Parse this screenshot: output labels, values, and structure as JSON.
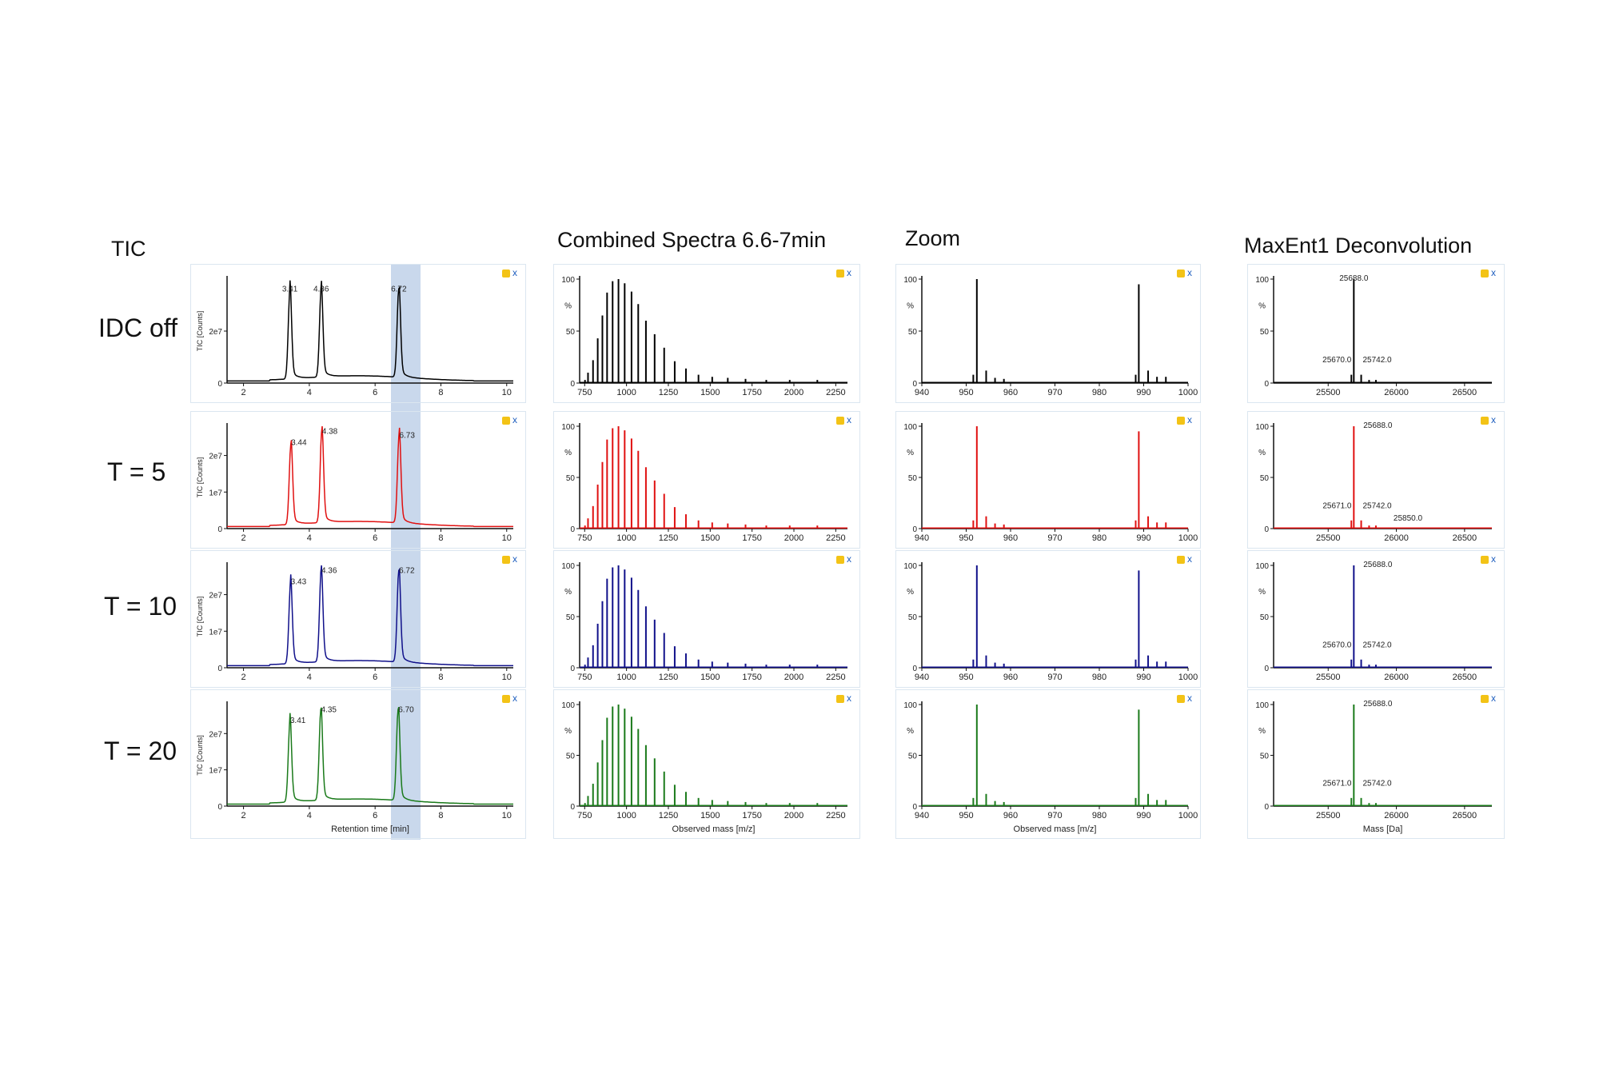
{
  "titles": {
    "tic": "TIC",
    "spectra": "Combined Spectra 6.6-7min",
    "zoom": "Zoom",
    "maxent": "MaxEnt1 Deconvolution"
  },
  "rows": [
    {
      "label": "IDC off",
      "color": "#000000"
    },
    {
      "label": "T = 5",
      "color": "#e01010"
    },
    {
      "label": "T = 10",
      "color": "#10108a"
    },
    {
      "label": "T = 20",
      "color": "#1a7a1a"
    }
  ],
  "toolbar": {
    "close_label": "x"
  },
  "chart_data": [
    {
      "type": "line",
      "panel": "tic",
      "xlabel": "Retention time [min]",
      "ylabel": "TIC [Counts]",
      "xlim": [
        1.5,
        10.2
      ],
      "xticks": [
        2,
        4,
        6,
        8,
        10
      ],
      "highlight_range": [
        6.5,
        7.4
      ],
      "series": [
        {
          "ylim": [
            0,
            40000000
          ],
          "yticks": [
            {
              "v": 0,
              "t": "0"
            },
            {
              "v": 20000000,
              "t": "2e7"
            }
          ],
          "peaks": [
            {
              "x": 3.41,
              "y": 34000000,
              "label": "3.41"
            },
            {
              "x": 4.36,
              "y": 34000000,
              "label": "4.36"
            },
            {
              "x": 6.72,
              "y": 34000000,
              "label": "6.72"
            }
          ]
        },
        {
          "ylim": [
            0,
            28000000
          ],
          "yticks": [
            {
              "v": 0,
              "t": "0"
            },
            {
              "v": 10000000,
              "t": "1e7"
            },
            {
              "v": 20000000,
              "t": "2e7"
            }
          ],
          "peaks": [
            {
              "x": 3.44,
              "y": 22000000,
              "label": "3.44"
            },
            {
              "x": 4.38,
              "y": 25000000,
              "label": "4.38"
            },
            {
              "x": 6.73,
              "y": 24000000,
              "label": "6.73"
            }
          ]
        },
        {
          "ylim": [
            0,
            28000000
          ],
          "yticks": [
            {
              "v": 0,
              "t": "0"
            },
            {
              "v": 10000000,
              "t": "1e7"
            },
            {
              "v": 20000000,
              "t": "2e7"
            }
          ],
          "peaks": [
            {
              "x": 3.43,
              "y": 22000000,
              "label": "3.43"
            },
            {
              "x": 4.36,
              "y": 25000000,
              "label": "4.36"
            },
            {
              "x": 6.72,
              "y": 25000000,
              "label": "6.72"
            }
          ]
        },
        {
          "ylim": [
            0,
            28000000
          ],
          "yticks": [
            {
              "v": 0,
              "t": "0"
            },
            {
              "v": 10000000,
              "t": "1e7"
            },
            {
              "v": 20000000,
              "t": "2e7"
            }
          ],
          "peaks": [
            {
              "x": 3.41,
              "y": 22000000,
              "label": "3.41"
            },
            {
              "x": 4.35,
              "y": 25000000,
              "label": "4.35"
            },
            {
              "x": 6.7,
              "y": 25000000,
              "label": "6.70"
            }
          ]
        }
      ]
    },
    {
      "type": "bar",
      "panel": "spectra",
      "xlabel": "Observed mass [m/z]",
      "ylabel": "%",
      "xlim": [
        720,
        2320
      ],
      "xticks": [
        750,
        1000,
        1250,
        1500,
        1750,
        2000,
        2250
      ],
      "ylim": [
        0,
        100
      ],
      "yticks": [
        0,
        50,
        100
      ],
      "x": [
        752,
        770,
        800,
        828,
        856,
        884,
        917,
        952,
        989,
        1030,
        1070,
        1116,
        1168,
        1225,
        1288,
        1355,
        1430,
        1512,
        1605,
        1711,
        1835,
        1975,
        2140
      ],
      "values": [
        3,
        10,
        22,
        43,
        65,
        87,
        98,
        100,
        96,
        88,
        76,
        60,
        47,
        34,
        21,
        14,
        8,
        6,
        5,
        4,
        3,
        3,
        3
      ]
    },
    {
      "type": "bar",
      "panel": "zoom",
      "xlabel": "Observed mass [m/z]",
      "ylabel": "%",
      "xlim": [
        940,
        1000
      ],
      "xticks": [
        940,
        950,
        960,
        970,
        980,
        990,
        1000
      ],
      "ylim": [
        0,
        100
      ],
      "yticks": [
        0,
        50,
        100
      ],
      "x": [
        951.6,
        952.4,
        954.5,
        956.5,
        958.5,
        988.2,
        988.9,
        991,
        993,
        995
      ],
      "values": [
        8,
        100,
        12,
        5,
        4,
        8,
        95,
        12,
        6,
        6
      ]
    },
    {
      "type": "bar",
      "panel": "maxent",
      "xlabel": "Mass [Da]",
      "ylabel": "%",
      "xlim": [
        25100,
        26700
      ],
      "xticks": [
        25500,
        26000,
        26500
      ],
      "ylim": [
        0,
        100
      ],
      "yticks": [
        0,
        50,
        100
      ],
      "x": [
        25670,
        25688,
        25742,
        25800,
        25850
      ],
      "values": [
        8,
        100,
        8,
        3,
        3
      ],
      "labels": [
        [
          {
            "x": 25688,
            "t": "25688.0"
          },
          {
            "x": 25670,
            "t": "25670.0"
          },
          {
            "x": 25742,
            "t": "25742.0"
          }
        ],
        [
          {
            "x": 25688,
            "t": "25688.0"
          },
          {
            "x": 25671,
            "t": "25671.0"
          },
          {
            "x": 25742,
            "t": "25742.0"
          },
          {
            "x": 25850,
            "t": "25850.0"
          }
        ],
        [
          {
            "x": 25688,
            "t": "25688.0"
          },
          {
            "x": 25670,
            "t": "25670.0"
          },
          {
            "x": 25742,
            "t": "25742.0"
          }
        ],
        [
          {
            "x": 25688,
            "t": "25688.0"
          },
          {
            "x": 25671,
            "t": "25671.0"
          },
          {
            "x": 25742,
            "t": "25742.0"
          }
        ]
      ]
    }
  ]
}
